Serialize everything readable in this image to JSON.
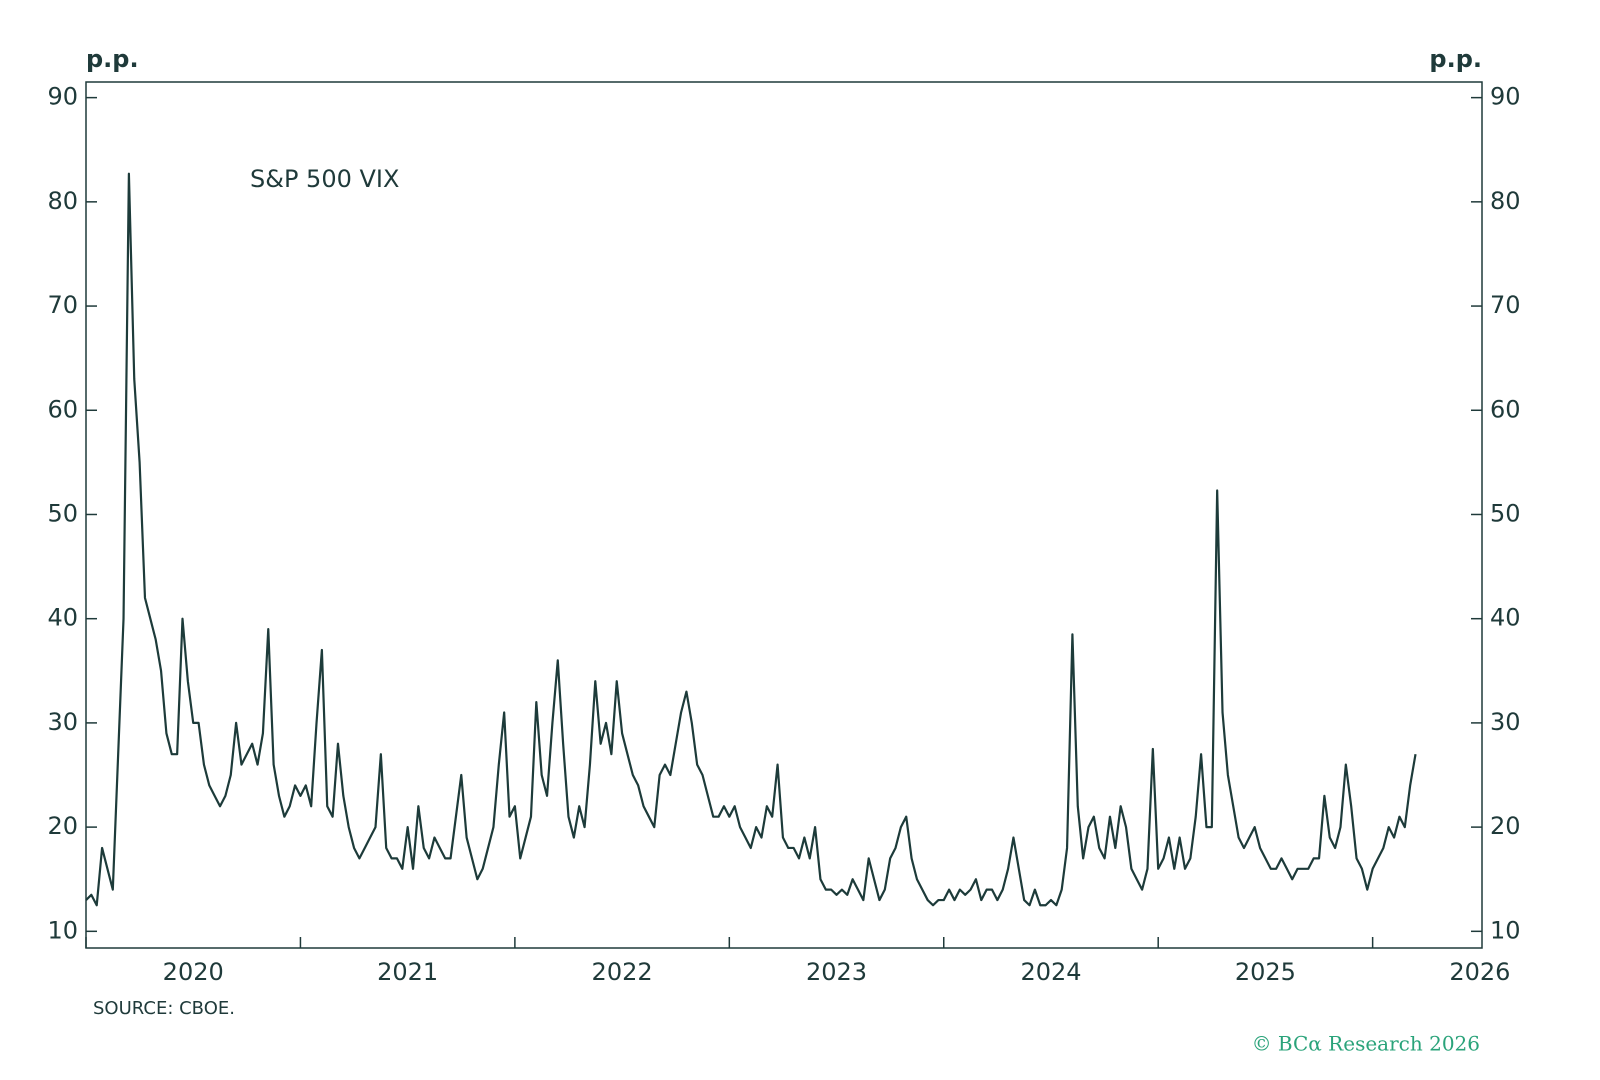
{
  "chart_data": {
    "type": "line",
    "annotation_note": null,
    "ylabel": "p.p.",
    "y2label": "p.p.",
    "source": "SOURCE: CBOE.",
    "credit": "© BCα Research 2026",
    "xlim": [
      2020,
      2026.51
    ],
    "xticks": [
      {
        "value": 2020.5,
        "label": "2020"
      },
      {
        "value": 2021.5,
        "label": "2021"
      },
      {
        "value": 2022.5,
        "label": "2022"
      },
      {
        "value": 2023.5,
        "label": "2023"
      },
      {
        "value": 2024.5,
        "label": "2024"
      },
      {
        "value": 2025.5,
        "label": "2025"
      },
      {
        "value": 2026.5,
        "label": "2026"
      }
    ],
    "x_tick_marks": [
      2020,
      2021,
      2022,
      2023,
      2024,
      2025,
      2026
    ],
    "ylim": [
      8.4,
      91.5
    ],
    "yticks": [
      10,
      20,
      30,
      40,
      50,
      60,
      70,
      80,
      90
    ],
    "y2lim": [
      8.4,
      91.5
    ],
    "y2ticks": [
      10,
      20,
      30,
      40,
      50,
      60,
      70,
      80,
      90
    ],
    "x": [
      2020,
      2020.025,
      2020.05,
      2020.075,
      2020.1,
      2020.125,
      2020.15,
      2020.175,
      2020.2,
      2020.225,
      2020.25,
      2020.275,
      2020.3,
      2020.325,
      2020.35,
      2020.375,
      2020.4,
      2020.425,
      2020.45,
      2020.475,
      2020.5,
      2020.525,
      2020.55,
      2020.575,
      2020.6,
      2020.625,
      2020.65,
      2020.675,
      2020.7,
      2020.725,
      2020.75,
      2020.775,
      2020.8,
      2020.825,
      2020.85,
      2020.875,
      2020.9,
      2020.925,
      2020.95,
      2020.975,
      2021,
      2021.025,
      2021.05,
      2021.075,
      2021.1,
      2021.125,
      2021.15,
      2021.175,
      2021.2,
      2021.225,
      2021.25,
      2021.275,
      2021.3,
      2021.325,
      2021.35,
      2021.375,
      2021.4,
      2021.425,
      2021.45,
      2021.475,
      2021.5,
      2021.525,
      2021.55,
      2021.575,
      2021.6,
      2021.625,
      2021.65,
      2021.675,
      2021.7,
      2021.725,
      2021.75,
      2021.775,
      2021.8,
      2021.825,
      2021.85,
      2021.875,
      2021.9,
      2021.925,
      2021.95,
      2021.975,
      2022,
      2022.025,
      2022.05,
      2022.075,
      2022.1,
      2022.125,
      2022.15,
      2022.175,
      2022.2,
      2022.225,
      2022.25,
      2022.275,
      2022.3,
      2022.325,
      2022.35,
      2022.375,
      2022.4,
      2022.425,
      2022.45,
      2022.475,
      2022.5,
      2022.525,
      2022.55,
      2022.575,
      2022.6,
      2022.625,
      2022.65,
      2022.675,
      2022.7,
      2022.725,
      2022.75,
      2022.775,
      2022.8,
      2022.825,
      2022.85,
      2022.875,
      2022.9,
      2022.925,
      2022.95,
      2022.975,
      2023,
      2023.025,
      2023.05,
      2023.075,
      2023.1,
      2023.125,
      2023.15,
      2023.175,
      2023.2,
      2023.225,
      2023.25,
      2023.275,
      2023.3,
      2023.325,
      2023.35,
      2023.375,
      2023.4,
      2023.425,
      2023.45,
      2023.475,
      2023.5,
      2023.525,
      2023.55,
      2023.575,
      2023.6,
      2023.625,
      2023.65,
      2023.675,
      2023.7,
      2023.725,
      2023.75,
      2023.775,
      2023.8,
      2023.825,
      2023.85,
      2023.875,
      2023.9,
      2023.925,
      2023.95,
      2023.975,
      2024,
      2024.025,
      2024.05,
      2024.075,
      2024.1,
      2024.125,
      2024.15,
      2024.175,
      2024.2,
      2024.225,
      2024.25,
      2024.275,
      2024.3,
      2024.325,
      2024.35,
      2024.375,
      2024.4,
      2024.425,
      2024.45,
      2024.475,
      2024.5,
      2024.525,
      2024.55,
      2024.575,
      2024.6,
      2024.625,
      2024.65,
      2024.675,
      2024.7,
      2024.725,
      2024.75,
      2024.775,
      2024.8,
      2024.825,
      2024.85,
      2024.875,
      2024.9,
      2024.925,
      2024.95,
      2024.975,
      2025,
      2025.025,
      2025.05,
      2025.075,
      2025.1,
      2025.125,
      2025.15,
      2025.175,
      2025.2,
      2025.225,
      2025.25,
      2025.275,
      2025.3,
      2025.325,
      2025.35,
      2025.375,
      2025.4,
      2025.425,
      2025.45,
      2025.475,
      2025.5,
      2025.525,
      2025.55,
      2025.575,
      2025.6,
      2025.625,
      2025.65,
      2025.675,
      2025.7,
      2025.725,
      2025.75,
      2025.775,
      2025.8,
      2025.825,
      2025.85,
      2025.875,
      2025.9,
      2025.925,
      2025.95,
      2025.975,
      2026,
      2026.025,
      2026.05,
      2026.075,
      2026.1,
      2026.125,
      2026.15,
      2026.175,
      2026.2
    ],
    "series": [
      {
        "name": "S&P 500 VIX",
        "color": "#1d3b3a",
        "values": [
          13,
          13.5,
          12.5,
          18,
          16,
          14,
          27,
          40,
          82.7,
          63,
          55,
          42,
          40,
          38,
          35,
          29,
          27,
          27,
          40,
          34,
          30,
          30,
          26,
          24,
          23,
          22,
          23,
          25,
          30,
          26,
          27,
          28,
          26,
          29,
          39,
          26,
          23,
          21,
          22,
          24,
          23,
          24,
          22,
          30,
          37,
          22,
          21,
          28,
          23,
          20,
          18,
          17,
          18,
          19,
          20,
          27,
          18,
          17,
          17,
          16,
          20,
          16,
          22,
          18,
          17,
          19,
          18,
          17,
          17,
          21,
          25,
          19,
          17,
          15,
          16,
          18,
          20,
          26,
          31,
          21,
          22,
          17,
          19,
          21,
          32,
          25,
          23,
          30,
          36,
          28,
          21,
          19,
          22,
          20,
          26,
          34,
          28,
          30,
          27,
          34,
          29,
          27,
          25,
          24,
          22,
          21,
          20,
          25,
          26,
          25,
          28,
          31,
          33,
          30,
          26,
          25,
          23,
          21,
          21,
          22,
          21,
          22,
          20,
          19,
          18,
          20,
          19,
          22,
          21,
          26,
          19,
          18,
          18,
          17,
          19,
          17,
          20,
          15,
          14,
          14,
          13.5,
          14,
          13.5,
          15,
          14,
          13,
          17,
          15,
          13,
          14,
          17,
          18,
          20,
          21,
          17,
          15,
          14,
          13,
          12.5,
          13,
          13,
          14,
          13,
          14,
          13.5,
          14,
          15,
          13,
          14,
          14,
          13,
          14,
          16,
          19,
          16,
          13,
          12.5,
          14,
          12.5,
          12.5,
          13,
          12.5,
          14,
          18,
          38.5,
          22,
          17,
          20,
          21,
          18,
          17,
          21,
          18,
          22,
          20,
          16,
          15,
          14,
          16,
          27.5,
          16,
          17,
          19,
          16,
          19,
          16,
          17,
          21,
          27,
          20,
          20,
          52.3,
          31,
          25,
          22,
          19,
          18,
          19,
          20,
          18,
          17,
          16,
          16,
          17,
          16,
          15,
          16,
          16,
          16,
          17,
          17,
          23,
          19,
          18,
          20,
          26,
          22,
          17,
          16,
          14,
          16,
          17,
          18,
          20,
          19,
          21,
          20,
          24,
          27
        ]
      }
    ]
  }
}
